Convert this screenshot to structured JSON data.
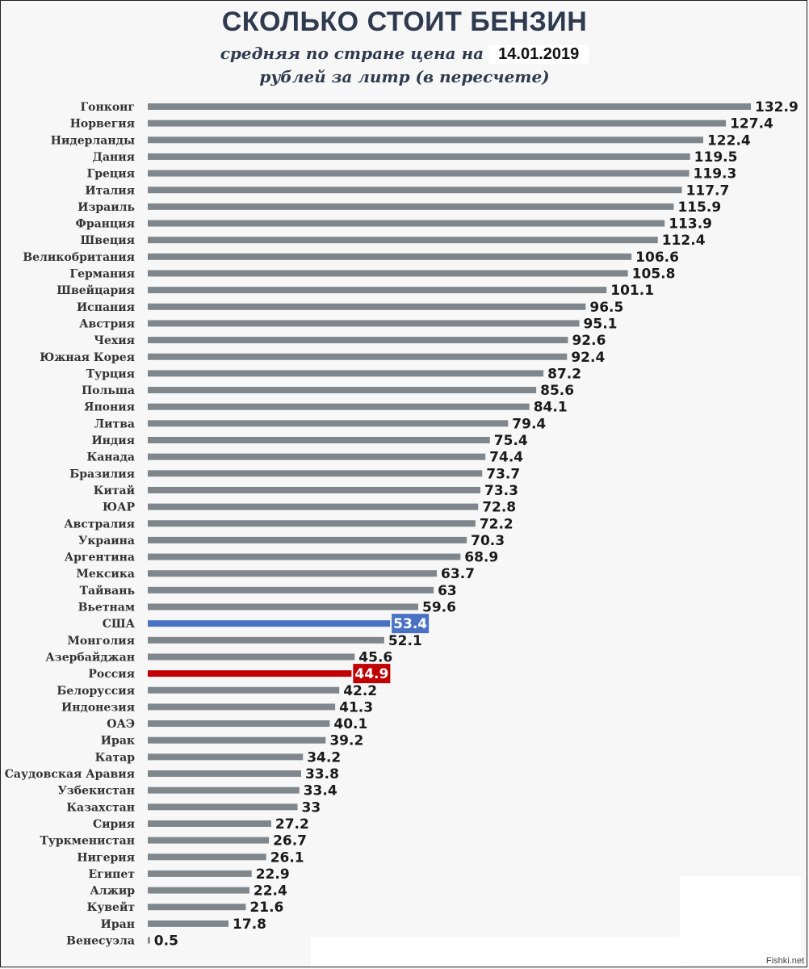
{
  "header": {
    "title": "СКОЛЬКО СТОИТ БЕНЗИН",
    "subtitle": "средняя по стране цена на",
    "date": "14.01.2019",
    "units": "рублей за литр (в пересчете)"
  },
  "watermark": "Fishki.net",
  "colors": {
    "bar": "#7f878d",
    "usa": "#4a72c4",
    "russia": "#c00000",
    "text": "#2f3a4f"
  },
  "chart_data": {
    "type": "bar",
    "orientation": "horizontal",
    "title": "СКОЛЬКО СТОИТ БЕНЗИН",
    "subtitle": "средняя по стране цена на 14.01.2019 рублей за литр (в пересчете)",
    "xlim": [
      0,
      132.9
    ],
    "grid": false,
    "categories": [
      "Гонконг",
      "Норвегия",
      "Нидерланды",
      "Дания",
      "Греция",
      "Италия",
      "Израиль",
      "Франция",
      "Швеция",
      "Великобритания",
      "Германия",
      "Швейцария",
      "Испания",
      "Австрия",
      "Чехия",
      "Южная Корея",
      "Турция",
      "Польша",
      "Япония",
      "Литва",
      "Индия",
      "Канада",
      "Бразилия",
      "Китай",
      "ЮАР",
      "Австралия",
      "Украина",
      "Аргентина",
      "Мексика",
      "Тайвань",
      "Вьетнам",
      "США",
      "Монголия",
      "Азербайджан",
      "Россия",
      "Белоруссия",
      "Индонезия",
      "ОАЭ",
      "Ирак",
      "Катар",
      "Саудовская Аравия",
      "Узбекистан",
      "Казахстан",
      "Сирия",
      "Туркменистан",
      "Нигерия",
      "Египет",
      "Алжир",
      "Кувейт",
      "Иран",
      "Венесуэла"
    ],
    "values": [
      132.9,
      127.4,
      122.4,
      119.5,
      119.3,
      117.7,
      115.9,
      113.9,
      112.4,
      106.6,
      105.8,
      101.1,
      96.5,
      95.1,
      92.6,
      92.4,
      87.2,
      85.6,
      84.1,
      79.4,
      75.4,
      74.4,
      73.7,
      73.3,
      72.8,
      72.2,
      70.3,
      68.9,
      63.7,
      63,
      59.6,
      53.4,
      52.1,
      45.6,
      44.9,
      42.2,
      41.3,
      40.1,
      39.2,
      34.2,
      33.8,
      33.4,
      33,
      27.2,
      26.7,
      26.1,
      22.9,
      22.4,
      21.6,
      17.8,
      0.5
    ],
    "value_labels": [
      "132.9",
      "127.4",
      "122.4",
      "119.5",
      "119.3",
      "117.7",
      "115.9",
      "113.9",
      "112.4",
      "106.6",
      "105.8",
      "101.1",
      "96.5",
      "95.1",
      "92.6",
      "92.4",
      "87.2",
      "85.6",
      "84.1",
      "79.4",
      "75.4",
      "74.4",
      "73.7",
      "73.3",
      "72.8",
      "72.2",
      "70.3",
      "68.9",
      "63.7",
      "63",
      "59.6",
      "53.4",
      "52.1",
      "45.6",
      "44.9",
      "42.2",
      "41.3",
      "40.1",
      "39.2",
      "34.2",
      "33.8",
      "33.4",
      "33",
      "27.2",
      "26.7",
      "26.1",
      "22.9",
      "22.4",
      "21.6",
      "17.8",
      "0.5"
    ],
    "highlights": {
      "США": "usa",
      "Россия": "russia"
    }
  }
}
